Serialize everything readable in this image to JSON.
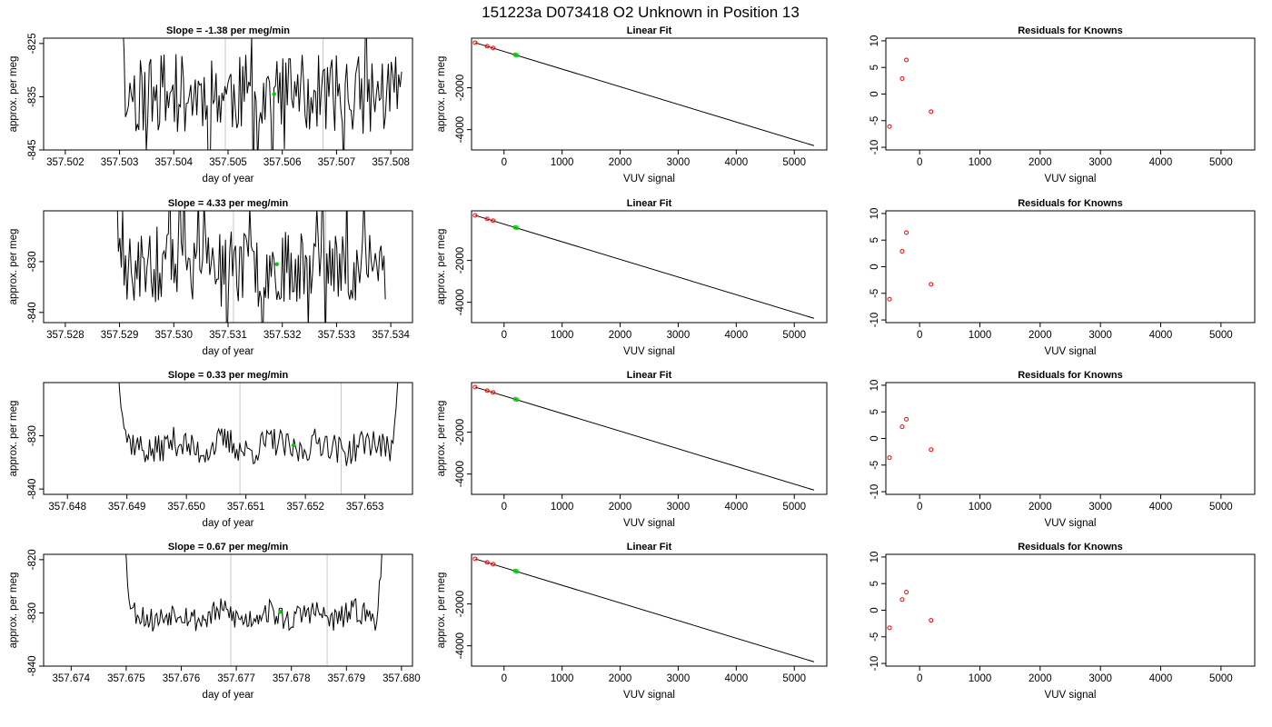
{
  "page_title": "151223a     D073418   O2 Unknown in Position  13",
  "colors": {
    "trace": "#000000",
    "vline": "#c8c8c8",
    "green": "#00cc00",
    "red": "#ff0000",
    "fitline": "#000000"
  },
  "chart_data": [
    {
      "type": "line",
      "row": 0,
      "panel": "timeseries",
      "title": "Slope =  -1.38  per meg/min",
      "xlabel": "day of year",
      "ylabel": "approx. per meg",
      "xlim": [
        357.5016,
        357.5084
      ],
      "ylim": [
        -845,
        -824
      ],
      "xticks": [
        "357.502",
        "357.503",
        "357.504",
        "357.505",
        "357.506",
        "357.507",
        "357.508"
      ],
      "yticks": [
        "-825",
        "-835",
        "-845"
      ],
      "trace": {
        "x_start": 357.503,
        "x_end": 357.5082,
        "center": -834.5,
        "amp": 7.5,
        "seed": 11,
        "edge": "wild"
      },
      "vlines": [
        357.50495,
        357.50675
      ],
      "marker": {
        "x": 357.50585,
        "y": -834.5
      }
    },
    {
      "type": "scatter",
      "row": 0,
      "panel": "fit",
      "title": "Linear Fit",
      "xlabel": "VUV signal",
      "ylabel": "approx. per meg",
      "xlim": [
        -560,
        5560
      ],
      "ylim": [
        -4970,
        370
      ],
      "xticks": [
        "0",
        "1000",
        "2000",
        "3000",
        "4000",
        "5000"
      ],
      "yticks": [
        "-2000",
        "-4000"
      ],
      "line": {
        "x": [
          -500,
          5340
        ],
        "y": [
          155,
          -4765
        ]
      },
      "known_points": [
        {
          "x": -500,
          "y": 152
        },
        {
          "x": -290,
          "y": -15
        },
        {
          "x": -190,
          "y": -100
        }
      ],
      "unknown_points": [
        {
          "x": 190,
          "y": -420
        },
        {
          "x": 220,
          "y": -445
        }
      ]
    },
    {
      "type": "scatter",
      "row": 0,
      "panel": "residuals",
      "title": "Residuals for Knowns",
      "xlabel": "VUV signal",
      "ylabel": "",
      "xlim": [
        -560,
        5560
      ],
      "ylim": [
        -10.5,
        10.5
      ],
      "xticks": [
        "0",
        "1000",
        "2000",
        "3000",
        "4000",
        "5000"
      ],
      "yticks": [
        "10",
        "5",
        "0",
        "-5",
        "-10"
      ],
      "points": [
        {
          "x": -500,
          "y": -6.1
        },
        {
          "x": -290,
          "y": 2.9
        },
        {
          "x": -220,
          "y": 6.4
        },
        {
          "x": 190,
          "y": -3.3
        }
      ]
    },
    {
      "type": "line",
      "row": 1,
      "panel": "timeseries",
      "title": "Slope =  4.33  per meg/min",
      "xlabel": "day of year",
      "ylabel": "approx. per meg",
      "xlim": [
        357.5276,
        357.5344
      ],
      "ylim": [
        -842,
        -820
      ],
      "xticks": [
        "357.528",
        "357.529",
        "357.530",
        "357.531",
        "357.532",
        "357.533",
        "357.534"
      ],
      "yticks": [
        "-830",
        "-840"
      ],
      "trace": {
        "x_start": 357.5289,
        "x_end": 357.5339,
        "center": -831,
        "amp": 7,
        "seed": 23,
        "edge": "wild"
      },
      "vlines": [
        357.5311,
        357.5328
      ],
      "marker": {
        "x": 357.5319,
        "y": -830.5
      }
    },
    {
      "type": "scatter",
      "row": 1,
      "panel": "fit",
      "title": "Linear Fit",
      "xlabel": "VUV signal",
      "ylabel": "approx. per meg",
      "xlim": [
        -560,
        5560
      ],
      "ylim": [
        -4970,
        370
      ],
      "xticks": [
        "0",
        "1000",
        "2000",
        "3000",
        "4000",
        "5000"
      ],
      "yticks": [
        "-2000",
        "-4000"
      ],
      "line": {
        "x": [
          -500,
          5340
        ],
        "y": [
          155,
          -4765
        ]
      },
      "known_points": [
        {
          "x": -500,
          "y": 152
        },
        {
          "x": -290,
          "y": -15
        },
        {
          "x": -190,
          "y": -100
        }
      ],
      "unknown_points": [
        {
          "x": 190,
          "y": -420
        },
        {
          "x": 220,
          "y": -445
        }
      ]
    },
    {
      "type": "scatter",
      "row": 1,
      "panel": "residuals",
      "title": "Residuals for Knowns",
      "xlabel": "VUV signal",
      "ylabel": "",
      "xlim": [
        -560,
        5560
      ],
      "ylim": [
        -10.5,
        10.5
      ],
      "xticks": [
        "0",
        "1000",
        "2000",
        "3000",
        "4000",
        "5000"
      ],
      "yticks": [
        "10",
        "5",
        "0",
        "-5",
        "-10"
      ],
      "points": [
        {
          "x": -500,
          "y": -6.1
        },
        {
          "x": -290,
          "y": 2.9
        },
        {
          "x": -220,
          "y": 6.4
        },
        {
          "x": 190,
          "y": -3.3
        }
      ]
    },
    {
      "type": "line",
      "row": 2,
      "panel": "timeseries",
      "title": "Slope =  0.33  per meg/min",
      "xlabel": "day of year",
      "ylabel": "approx. per meg",
      "xlim": [
        357.6476,
        357.6538
      ],
      "ylim": [
        -841,
        -820
      ],
      "xticks": [
        "357.648",
        "357.649",
        "357.650",
        "357.651",
        "357.652",
        "357.653"
      ],
      "yticks": [
        "-830",
        "-840"
      ],
      "trace": {
        "x_start": 357.6488,
        "x_end": 357.6536,
        "center": -832,
        "amp": 2.8,
        "seed": 37,
        "edge": "cup"
      },
      "vlines": [
        357.6509,
        357.6526
      ],
      "marker": {
        "x": 357.6518,
        "y": -831.8
      }
    },
    {
      "type": "scatter",
      "row": 2,
      "panel": "fit",
      "title": "Linear Fit",
      "xlabel": "VUV signal",
      "ylabel": "approx. per meg",
      "xlim": [
        -560,
        5560
      ],
      "ylim": [
        -4970,
        370
      ],
      "xticks": [
        "0",
        "1000",
        "2000",
        "3000",
        "4000",
        "5000"
      ],
      "yticks": [
        "-2000",
        "-4000"
      ],
      "line": {
        "x": [
          -500,
          5340
        ],
        "y": [
          155,
          -4765
        ]
      },
      "known_points": [
        {
          "x": -500,
          "y": 152
        },
        {
          "x": -290,
          "y": -15
        },
        {
          "x": -190,
          "y": -100
        }
      ],
      "unknown_points": [
        {
          "x": 190,
          "y": -420
        },
        {
          "x": 220,
          "y": -445
        }
      ]
    },
    {
      "type": "scatter",
      "row": 2,
      "panel": "residuals",
      "title": "Residuals for Knowns",
      "xlabel": "VUV signal",
      "ylabel": "",
      "xlim": [
        -560,
        5560
      ],
      "ylim": [
        -10.5,
        10.5
      ],
      "xticks": [
        "0",
        "1000",
        "2000",
        "3000",
        "4000",
        "5000"
      ],
      "yticks": [
        "10",
        "5",
        "0",
        "-5",
        "-10"
      ],
      "points": [
        {
          "x": -500,
          "y": -3.6
        },
        {
          "x": -290,
          "y": 2.2
        },
        {
          "x": -220,
          "y": 3.6
        },
        {
          "x": 190,
          "y": -2.1
        }
      ]
    },
    {
      "type": "line",
      "row": 3,
      "panel": "timeseries",
      "title": "Slope =  0.67  per meg/min",
      "xlabel": "day of year",
      "ylabel": "approx. per meg",
      "xlim": [
        357.6735,
        357.6802
      ],
      "ylim": [
        -840,
        -819
      ],
      "xticks": [
        "357.674",
        "357.675",
        "357.676",
        "357.677",
        "357.678",
        "357.679",
        "357.680"
      ],
      "yticks": [
        "-820",
        "-830",
        "-840"
      ],
      "trace": {
        "x_start": 357.6749,
        "x_end": 357.6797,
        "center": -830.5,
        "amp": 2.4,
        "seed": 53,
        "edge": "cup"
      },
      "vlines": [
        357.6769,
        357.67865
      ],
      "marker": {
        "x": 357.6778,
        "y": -829.8
      }
    },
    {
      "type": "scatter",
      "row": 3,
      "panel": "fit",
      "title": "Linear Fit",
      "xlabel": "VUV signal",
      "ylabel": "approx. per meg",
      "xlim": [
        -560,
        5560
      ],
      "ylim": [
        -4970,
        370
      ],
      "xticks": [
        "0",
        "1000",
        "2000",
        "3000",
        "4000",
        "5000"
      ],
      "yticks": [
        "-2000",
        "-4000"
      ],
      "line": {
        "x": [
          -500,
          5340
        ],
        "y": [
          155,
          -4765
        ]
      },
      "known_points": [
        {
          "x": -500,
          "y": 152
        },
        {
          "x": -290,
          "y": -15
        },
        {
          "x": -190,
          "y": -100
        }
      ],
      "unknown_points": [
        {
          "x": 190,
          "y": -420
        },
        {
          "x": 220,
          "y": -445
        }
      ]
    },
    {
      "type": "scatter",
      "row": 3,
      "panel": "residuals",
      "title": "Residuals for Knowns",
      "xlabel": "VUV signal",
      "ylabel": "",
      "xlim": [
        -560,
        5560
      ],
      "ylim": [
        -10.5,
        10.5
      ],
      "xticks": [
        "0",
        "1000",
        "2000",
        "3000",
        "4000",
        "5000"
      ],
      "yticks": [
        "10",
        "5",
        "0",
        "-5",
        "-10"
      ],
      "points": [
        {
          "x": -500,
          "y": -3.3
        },
        {
          "x": -290,
          "y": 2.0
        },
        {
          "x": -220,
          "y": 3.4
        },
        {
          "x": 190,
          "y": -1.9
        }
      ]
    }
  ]
}
